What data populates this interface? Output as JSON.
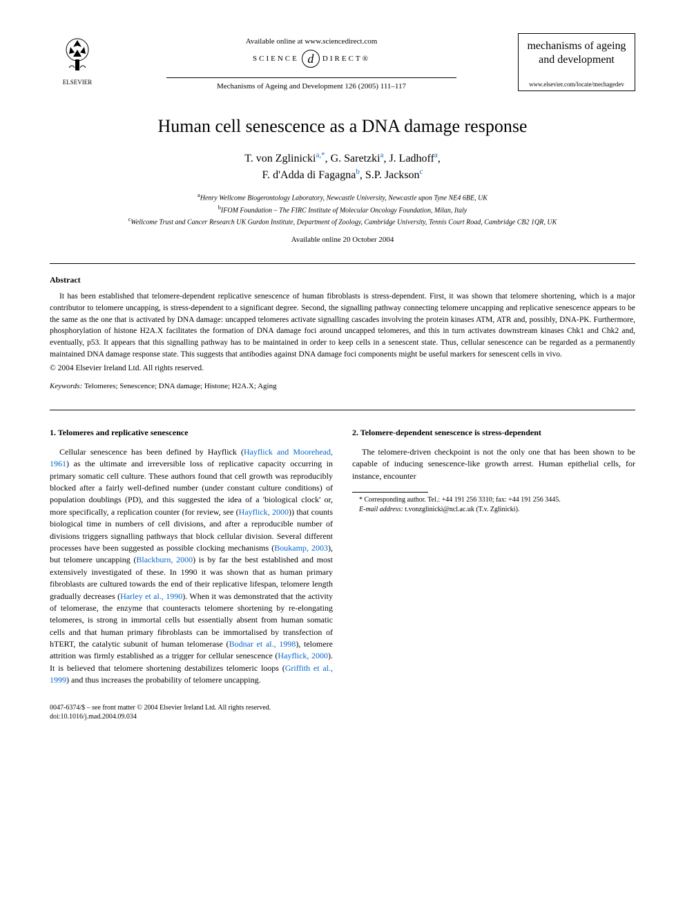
{
  "header": {
    "publisher": "ELSEVIER",
    "available_text": "Available online at www.sciencedirect.com",
    "sd_left": "SCIENCE",
    "sd_right": "DIRECT®",
    "sd_at": "d",
    "journal_ref": "Mechanisms of Ageing and Development 126 (2005) 111–117",
    "journal_box_line1": "mechanisms of ageing",
    "journal_box_line2": "and development",
    "journal_url": "www.elsevier.com/locate/mechagedev"
  },
  "title": "Human cell senescence as a DNA damage response",
  "authors_line1_parts": [
    {
      "text": "T. von Zglinicki",
      "sup": "a,",
      "link": true
    },
    {
      "star": "*"
    },
    {
      "text": ", G. Saretzki",
      "sup": "a",
      "link": true
    },
    {
      "text": ", J. Ladhoff",
      "sup": "a",
      "link": true
    },
    {
      "plain": ","
    }
  ],
  "authors_line2_parts": [
    {
      "text": "F. d'Adda di Fagagna",
      "sup": "b",
      "link": true
    },
    {
      "text": ", S.P. Jackson",
      "sup": "c",
      "link": true
    }
  ],
  "affiliations": [
    {
      "sup": "a",
      "text": "Henry Wellcome Biogerontology Laboratory, Newcastle University, Newcastle upon Tyne NE4 6BE, UK"
    },
    {
      "sup": "b",
      "text": "IFOM Foundation – The FIRC Institute of Molecular Oncology Foundation, Milan, Italy"
    },
    {
      "sup": "c",
      "text": "Wellcome Trust and Cancer Research UK Gurdon Institute, Department of Zoology, Cambridge University, Tennis Court Road, Cambridge CB2 1QR, UK"
    }
  ],
  "available_date": "Available online 20 October 2004",
  "abstract": {
    "heading": "Abstract",
    "body": "It has been established that telomere-dependent replicative senescence of human fibroblasts is stress-dependent. First, it was shown that telomere shortening, which is a major contributor to telomere uncapping, is stress-dependent to a significant degree. Second, the signalling pathway connecting telomere uncapping and replicative senescence appears to be the same as the one that is activated by DNA damage: uncapped telomeres activate signalling cascades involving the protein kinases ATM, ATR and, possibly, DNA-PK. Furthermore, phosphorylation of histone H2A.X facilitates the formation of DNA damage foci around uncapped telomeres, and this in turn activates downstream kinases Chk1 and Chk2 and, eventually, p53. It appears that this signalling pathway has to be maintained in order to keep cells in a senescent state. Thus, cellular senescence can be regarded as a permanently maintained DNA damage response state. This suggests that antibodies against DNA damage foci components might be useful markers for senescent cells in vivo.",
    "copyright": "© 2004 Elsevier Ireland Ltd. All rights reserved."
  },
  "keywords": {
    "label": "Keywords:",
    "text": " Telomeres; Senescence; DNA damage; Histone; H2A.X; Aging"
  },
  "sections": [
    {
      "heading": "1. Telomeres and replicative senescence",
      "para": "Cellular senescence has been defined by Hayflick (|Hayflick and Moorehead, 1961|) as the ultimate and irreversible loss of replicative capacity occurring in primary somatic cell culture. These authors found that cell growth was reproducibly blocked after a fairly well-defined number (under constant culture conditions) of population doublings (PD), and this suggested the idea of a 'biological clock' or, more specifically, a replication counter (for review, see (|Hayflick, 2000|)) that counts biological time in numbers of cell divisions, and after a reproducible number of divisions triggers signalling pathways that block cellular division. Several different processes have been suggested as possible clocking mechanisms (|Boukamp, 2003|), but telomere uncapping (|Blackburn, 2000|) is by far the best established and most extensively investigated of these. In 1990 it was shown that as human primary fibroblasts are cultured towards the end of their replicative lifespan, telomere length gradually decreases (|Harley et al., 1990|). When it was demonstrated that the activity of telomerase, the enzyme that counteracts telomere shortening by re-elongating telomeres, is strong in immortal cells but essentially absent from human somatic cells and that human primary fibroblasts can be immortalised by transfection of hTERT, the catalytic subunit of human telomerase (|Bodnar et al., 1998|), telomere attrition was firmly established as a trigger for cellular senescence (|Hayflick, 2000|). It is believed that telomere shortening destabilizes telomeric loops (|Griffith et al., 1999|) and thus increases the probability of telomere uncapping."
    },
    {
      "heading": "2. Telomere-dependent senescence is stress-dependent",
      "para": "The telomere-driven checkpoint is not the only one that has been shown to be capable of inducing senescence-like growth arrest. Human epithelial cells, for instance, encounter"
    }
  ],
  "footnote": {
    "corr": "* Corresponding author. Tel.: +44 191 256 3310; fax: +44 191 256 3445.",
    "email_label": "E-mail address:",
    "email": " t.vonzglinicki@ncl.ac.uk (T.v. Zglinicki)."
  },
  "footer": {
    "line1": "0047-6374/$ – see front matter © 2004 Elsevier Ireland Ltd. All rights reserved.",
    "line2": "doi:10.1016/j.mad.2004.09.034"
  },
  "colors": {
    "link": "#0066cc",
    "text": "#000000",
    "bg": "#ffffff"
  }
}
